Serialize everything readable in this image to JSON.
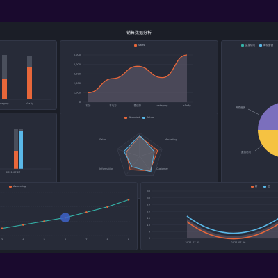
{
  "dashboard": {
    "title": "销售数据分析"
  },
  "colors": {
    "orange": "#e8673a",
    "blue": "#5ab8e8",
    "teal": "#34b3a8",
    "purple": "#7b6fbd",
    "yellow": "#f5c242",
    "grid": "#3a3f4e"
  },
  "panel_bars_topleft": {
    "categories": [
      "category",
      "x5a3y"
    ],
    "values_gray": [
      100,
      100
    ],
    "values_orange": [
      45,
      65
    ]
  },
  "panel_area": {
    "legend": "Sales",
    "chart_data": {
      "type": "area",
      "categories": [
        "衬衫",
        "羊毛衫",
        "雪纺衫",
        "category",
        "x5a3y"
      ],
      "values": [
        1000,
        2500,
        3800,
        2600,
        5000
      ],
      "yticks": [
        "0",
        "1,000",
        "2,000",
        "3,000",
        "4,000",
        "5,000"
      ],
      "ylim": [
        0,
        5000
      ]
    }
  },
  "panel_pie": {
    "legend": [
      "直接访问",
      "邮件营销"
    ],
    "labels": [
      "邮件营销",
      "直接访问"
    ],
    "chart_data": {
      "type": "pie",
      "values": [
        50,
        50
      ],
      "colors": [
        "#7b6fbd",
        "#f5c242"
      ]
    }
  },
  "panel_bars_midleft": {
    "date": "2021-07-27",
    "values_gray": [
      100,
      100
    ],
    "values_colored": [
      45,
      90
    ]
  },
  "panel_radar": {
    "legend": [
      "Allocated",
      "Actual"
    ],
    "indicators": [
      "Sales",
      "Marketing",
      "Customer",
      "Information",
      "Admin"
    ],
    "chart_data": {
      "type": "radar",
      "series": [
        {
          "name": "Allocated",
          "values": [
            0.85,
            0.8,
            0.75,
            0.7,
            0.6
          ]
        },
        {
          "name": "Actual",
          "values": [
            0.9,
            0.65,
            0.8,
            0.55,
            0.7
          ]
        }
      ]
    }
  },
  "panel_line_bottom": {
    "legend": "Ascending",
    "chart_data": {
      "type": "line",
      "x": [
        "3",
        "4",
        "5",
        "6",
        "7",
        "8",
        "9"
      ],
      "values": [
        12,
        14,
        16,
        18,
        21,
        24,
        28
      ]
    }
  },
  "panel_curve_bottom": {
    "legend": [
      "新",
      "旧"
    ],
    "yticks": [
      "0",
      "5",
      "10",
      "15",
      "20",
      "25",
      "30",
      "35"
    ],
    "xticks": [
      "2021-07-25",
      "2021-07-26"
    ],
    "chart_data": {
      "type": "line",
      "ylim": [
        0,
        35
      ]
    }
  }
}
